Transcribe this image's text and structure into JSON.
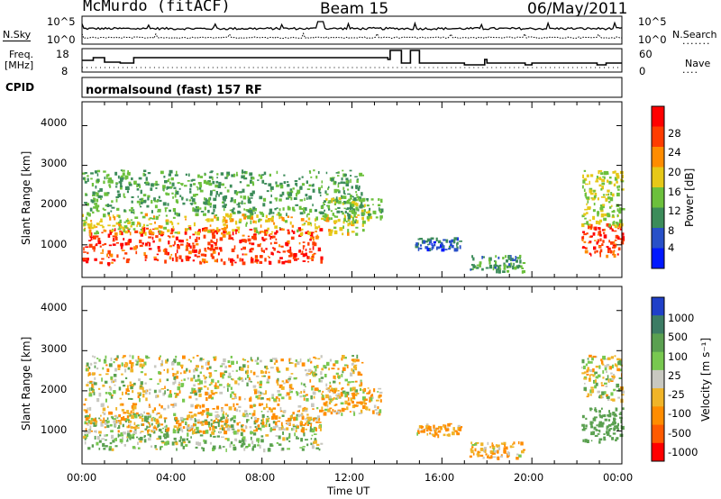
{
  "header": {
    "station": "McMurdo (fitACF)",
    "beam": "Beam 15",
    "date": "06/May/2011"
  },
  "noise_panel": {
    "left_label": "N.Sky",
    "right_label": "N.Search",
    "left_ticks": [
      "10^5",
      "10^0"
    ],
    "right_ticks": [
      "10^5",
      "10^0"
    ]
  },
  "freq_panel": {
    "left_label_1": "Freq.",
    "left_label_2": "[MHz]",
    "right_label": "Nave",
    "left_ticks": [
      "18",
      "8"
    ],
    "right_ticks": [
      "60",
      "0"
    ]
  },
  "cpid": {
    "label": "CPID",
    "value": "normalsound (fast) 157 RF"
  },
  "time_axis": {
    "ticks": [
      "00:00",
      "04:00",
      "08:00",
      "12:00",
      "16:00",
      "20:00",
      "00:00"
    ],
    "label": "Time UT"
  },
  "range_axis": {
    "ticks": [
      "1000",
      "2000",
      "3000",
      "4000"
    ],
    "label": "Slant Range [km]"
  },
  "power_scale": {
    "label": "Power [dB]",
    "ticks": [
      "4",
      "8",
      "12",
      "16",
      "20",
      "24",
      "28"
    ],
    "colors": [
      "#0018ff",
      "#2850c8",
      "#3c8c5a",
      "#6cc03c",
      "#e6c818",
      "#ff8c00",
      "#ff3c00",
      "#ff0000"
    ]
  },
  "velocity_scale": {
    "label": "Velocity [m s⁻¹]",
    "ticks": [
      "1000",
      "500",
      "100",
      "25",
      "-25",
      "-100",
      "-500",
      "-1000"
    ],
    "colors": [
      "#2040c8",
      "#3c7c64",
      "#5aa050",
      "#78c850",
      "#c8c8c0",
      "#f0b428",
      "#ff8c00",
      "#ff5a00",
      "#ff0000"
    ]
  },
  "chart_data": [
    {
      "type": "heatmap",
      "name": "power",
      "xlabel": "Time UT",
      "ylabel": "Slant Range [km]",
      "colorbar_label": "Power [dB]",
      "xlim": [
        "00:00",
        "24:00"
      ],
      "ylim": [
        180,
        4600
      ],
      "clim": [
        0,
        32
      ],
      "echo_regions": [
        {
          "t": [
            0.0,
            10.6
          ],
          "range_km": [
            560,
            1450
          ],
          "value_db": 27
        },
        {
          "t": [
            0.0,
            12.5
          ],
          "range_km": [
            1300,
            1800
          ],
          "value_db": 18
        },
        {
          "t": [
            0.0,
            12.5
          ],
          "range_km": [
            1800,
            2900
          ],
          "value_db": 12
        },
        {
          "t": [
            10.6,
            13.3
          ],
          "range_km": [
            1600,
            2200
          ],
          "value_db": 14
        },
        {
          "t": [
            14.8,
            16.8
          ],
          "range_km": [
            900,
            1200
          ],
          "value_db": 7
        },
        {
          "t": [
            17.2,
            19.6
          ],
          "range_km": [
            350,
            750
          ],
          "value_db": 11
        },
        {
          "t": [
            22.2,
            24.0
          ],
          "range_km": [
            750,
            1550
          ],
          "value_db": 27
        },
        {
          "t": [
            22.2,
            24.0
          ],
          "range_km": [
            1500,
            2900
          ],
          "value_db": 16
        }
      ]
    },
    {
      "type": "heatmap",
      "name": "velocity",
      "xlabel": "Time UT",
      "ylabel": "Slant Range [km]",
      "colorbar_label": "Velocity [m s⁻¹]",
      "xlim": [
        "00:00",
        "24:00"
      ],
      "ylim": [
        180,
        4600
      ],
      "clim": [
        -1000,
        1000
      ],
      "echo_regions": [
        {
          "t": [
            0.0,
            10.6
          ],
          "range_km": [
            560,
            1450
          ],
          "value_ms": 100
        },
        {
          "t": [
            0.0,
            10.6
          ],
          "range_km": [
            1000,
            1700
          ],
          "value_ms": -100
        },
        {
          "t": [
            0.0,
            12.5
          ],
          "range_km": [
            1800,
            2900
          ],
          "value_ms": 0
        },
        {
          "t": [
            10.6,
            13.3
          ],
          "range_km": [
            1450,
            2100
          ],
          "value_ms": -100
        },
        {
          "t": [
            14.8,
            16.8
          ],
          "range_km": [
            900,
            1200
          ],
          "value_ms": -100
        },
        {
          "t": [
            17.2,
            19.6
          ],
          "range_km": [
            350,
            750
          ],
          "value_ms": -100
        },
        {
          "t": [
            22.2,
            24.0
          ],
          "range_km": [
            750,
            1600
          ],
          "value_ms": 300
        },
        {
          "t": [
            22.2,
            24.0
          ],
          "range_km": [
            1800,
            2900
          ],
          "value_ms": 0
        }
      ]
    }
  ]
}
